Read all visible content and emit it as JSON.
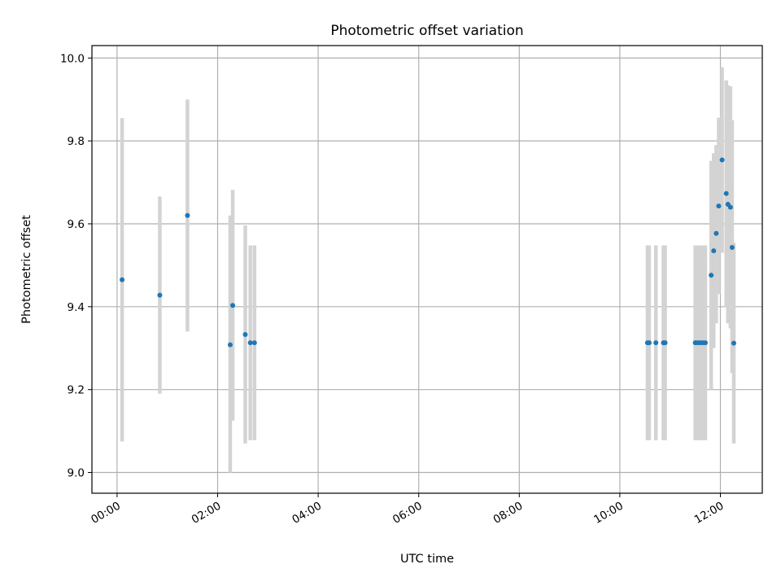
{
  "chart_data": {
    "type": "scatter",
    "title": "Photometric offset variation",
    "xlabel": "UTC time",
    "ylabel": "Photometric offset",
    "x_ticks": [
      "00:00",
      "02:00",
      "04:00",
      "06:00",
      "08:00",
      "10:00",
      "12:00"
    ],
    "y_ticks": [
      "9.0",
      "9.2",
      "9.4",
      "9.6",
      "9.8",
      "10.0"
    ],
    "xlim": [
      "23:30",
      "12:50"
    ],
    "ylim": [
      8.95,
      10.03
    ],
    "grid": true,
    "marker_color": "#1f77b4",
    "errorbar_color": "#d3d3d3",
    "points": [
      {
        "t": "00:06",
        "y": 9.465,
        "lo": 9.075,
        "hi": 9.855
      },
      {
        "t": "00:51",
        "y": 9.428,
        "lo": 9.19,
        "hi": 9.666
      },
      {
        "t": "01:24",
        "y": 9.62,
        "lo": 9.34,
        "hi": 9.9
      },
      {
        "t": "02:15",
        "y": 9.308,
        "lo": 9.0,
        "hi": 9.62
      },
      {
        "t": "02:18",
        "y": 9.403,
        "lo": 9.125,
        "hi": 9.682
      },
      {
        "t": "02:33",
        "y": 9.333,
        "lo": 9.07,
        "hi": 9.596
      },
      {
        "t": "02:39",
        "y": 9.313,
        "lo": 9.078,
        "hi": 9.548
      },
      {
        "t": "02:44",
        "y": 9.313,
        "lo": 9.078,
        "hi": 9.548
      },
      {
        "t": "10:33",
        "y": 9.313,
        "lo": 9.078,
        "hi": 9.548
      },
      {
        "t": "10:35",
        "y": 9.313,
        "lo": 9.078,
        "hi": 9.548
      },
      {
        "t": "10:43",
        "y": 9.313,
        "lo": 9.078,
        "hi": 9.548
      },
      {
        "t": "10:52",
        "y": 9.313,
        "lo": 9.078,
        "hi": 9.548
      },
      {
        "t": "10:54",
        "y": 9.313,
        "lo": 9.078,
        "hi": 9.548
      },
      {
        "t": "11:30",
        "y": 9.313,
        "lo": 9.078,
        "hi": 9.548
      },
      {
        "t": "11:33",
        "y": 9.313,
        "lo": 9.078,
        "hi": 9.548
      },
      {
        "t": "11:36",
        "y": 9.313,
        "lo": 9.078,
        "hi": 9.548
      },
      {
        "t": "11:39",
        "y": 9.313,
        "lo": 9.078,
        "hi": 9.548
      },
      {
        "t": "11:42",
        "y": 9.313,
        "lo": 9.078,
        "hi": 9.548
      },
      {
        "t": "11:49",
        "y": 9.476,
        "lo": 9.2,
        "hi": 9.752
      },
      {
        "t": "11:52",
        "y": 9.535,
        "lo": 9.3,
        "hi": 9.77
      },
      {
        "t": "11:55",
        "y": 9.577,
        "lo": 9.36,
        "hi": 9.79
      },
      {
        "t": "11:58",
        "y": 9.643,
        "lo": 9.43,
        "hi": 9.856
      },
      {
        "t": "12:02",
        "y": 9.754,
        "lo": 9.53,
        "hi": 9.978
      },
      {
        "t": "12:07",
        "y": 9.673,
        "lo": 9.4,
        "hi": 9.946
      },
      {
        "t": "12:09",
        "y": 9.647,
        "lo": 9.36,
        "hi": 9.934
      },
      {
        "t": "12:12",
        "y": 9.64,
        "lo": 9.348,
        "hi": 9.932
      },
      {
        "t": "12:14",
        "y": 9.543,
        "lo": 9.24,
        "hi": 9.85
      },
      {
        "t": "12:16",
        "y": 9.312,
        "lo": 9.07,
        "hi": 9.554
      }
    ]
  }
}
